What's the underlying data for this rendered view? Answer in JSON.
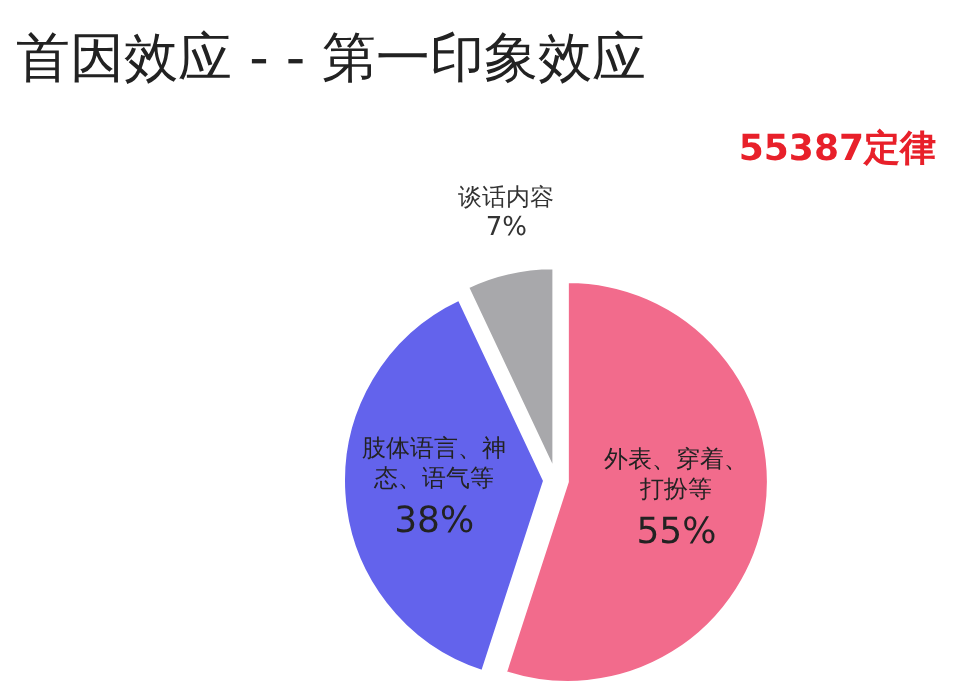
{
  "chart_data": {
    "type": "pie",
    "title": "首因效应 - - 第一印象效应",
    "annotations": [
      "55387定律"
    ],
    "categories": [
      "外表、穿着、打扮等",
      "肢体语言、神态、语气等",
      "谈话内容"
    ],
    "values": [
      55,
      38,
      7
    ],
    "colors": [
      "#f26b8c",
      "#6363ec",
      "#a8a8ab"
    ],
    "value_labels": [
      "55%",
      "38%",
      "7%"
    ]
  }
}
